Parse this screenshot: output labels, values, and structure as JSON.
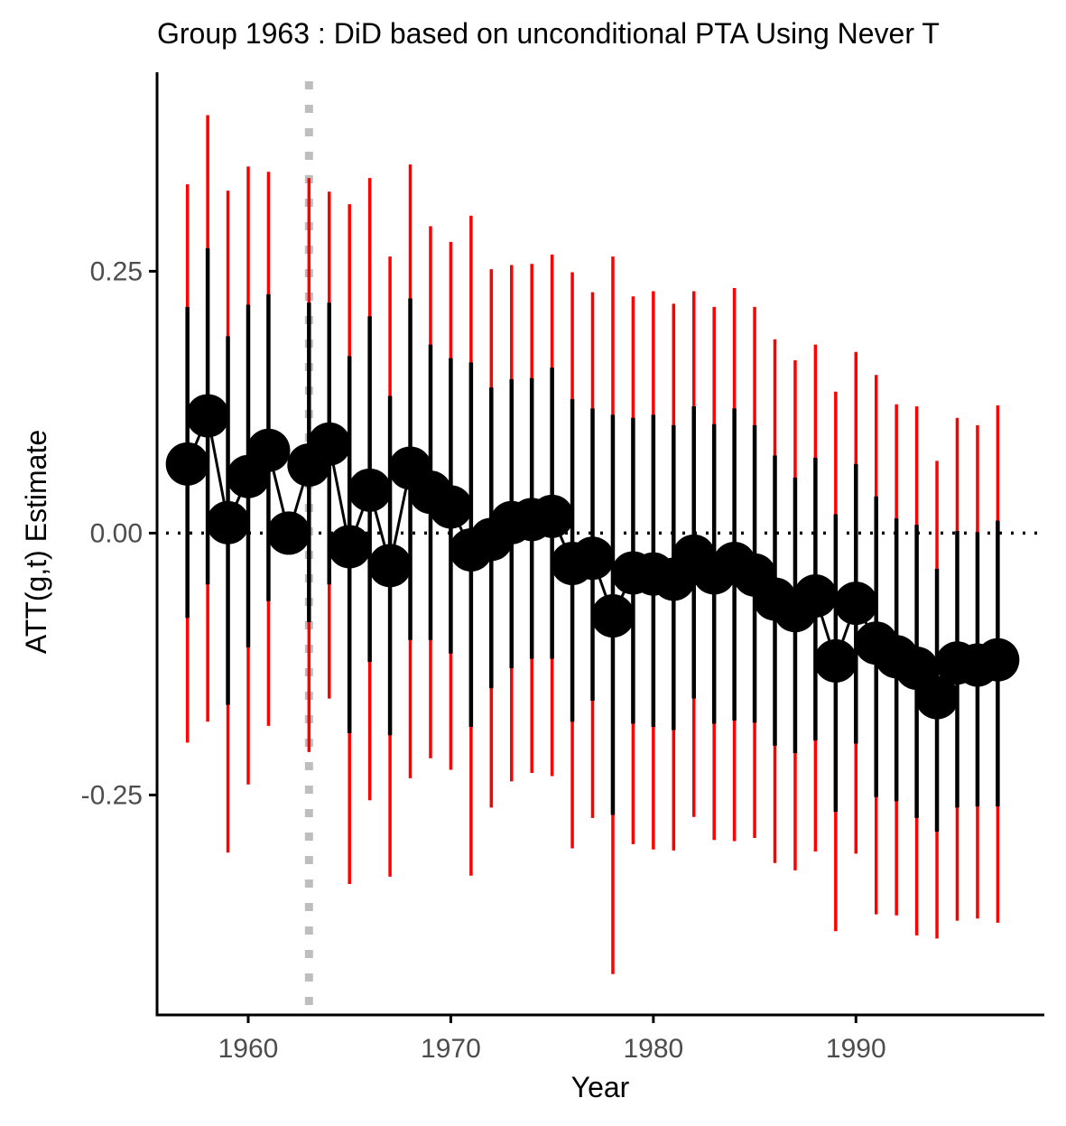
{
  "chart_data": {
    "type": "scatter",
    "title": "Group 1963 : DiD based on unconditional PTA Using Never T",
    "xlabel": "Year",
    "ylabel": "ATT(g,t) Estimate",
    "xlim": [
      1955.5,
      1999.3
    ],
    "ylim": [
      -0.46,
      0.44
    ],
    "x_ticks": [
      1960,
      1970,
      1980,
      1990
    ],
    "x_tick_labels": [
      "1960",
      "1970",
      "1980",
      "1990"
    ],
    "y_ticks": [
      0.25,
      0.0,
      -0.25
    ],
    "y_tick_labels": [
      "0.25",
      "0.00",
      "-0.25"
    ],
    "treatment_year": 1963,
    "reference_line_y": 0,
    "grid": false,
    "legend": "none",
    "colors": {
      "point": "#000000",
      "line": "#000000",
      "pointwise_ci": "#000000",
      "uniform_band": "#ff0000",
      "treatment_line": "#bebebe",
      "zero_line": "#000000",
      "axis": "#000000",
      "tick_label": "#4d4d4d"
    },
    "series": [
      {
        "x": [
          1957,
          1958,
          1959,
          1960,
          1961,
          1962,
          1963,
          1964,
          1965,
          1966,
          1967,
          1968,
          1969,
          1970,
          1971,
          1972,
          1973,
          1974,
          1975,
          1976,
          1977,
          1978,
          1979,
          1980,
          1981,
          1982,
          1983,
          1984,
          1985,
          1986,
          1987,
          1988,
          1989,
          1990,
          1991,
          1992,
          1993,
          1994,
          1995,
          1996,
          1997
        ],
        "estimate": [
          0.066,
          0.112,
          0.01,
          0.054,
          0.079,
          0.0,
          0.065,
          0.085,
          -0.013,
          0.041,
          -0.031,
          0.062,
          0.039,
          0.025,
          -0.016,
          -0.006,
          0.01,
          0.013,
          0.016,
          -0.029,
          -0.024,
          -0.079,
          -0.038,
          -0.039,
          -0.044,
          -0.022,
          -0.038,
          -0.029,
          -0.04,
          -0.063,
          -0.074,
          -0.06,
          -0.122,
          -0.067,
          -0.105,
          -0.118,
          -0.129,
          -0.157,
          -0.124,
          -0.126,
          -0.121
        ],
        "ci_lower": [
          -0.081,
          -0.049,
          -0.164,
          -0.109,
          -0.065,
          null,
          -0.085,
          -0.049,
          -0.191,
          -0.123,
          -0.193,
          -0.102,
          -0.102,
          -0.115,
          -0.185,
          -0.148,
          -0.129,
          -0.12,
          -0.12,
          -0.18,
          -0.16,
          -0.269,
          -0.182,
          -0.185,
          -0.188,
          -0.158,
          -0.182,
          -0.179,
          -0.181,
          -0.203,
          -0.21,
          -0.198,
          -0.266,
          -0.201,
          -0.252,
          -0.256,
          -0.272,
          -0.285,
          -0.262,
          -0.261,
          -0.261
        ],
        "ci_upper": [
          0.216,
          0.272,
          0.188,
          0.218,
          0.228,
          null,
          0.22,
          0.22,
          0.169,
          0.207,
          0.131,
          0.224,
          0.18,
          0.167,
          0.163,
          0.139,
          0.147,
          0.148,
          0.158,
          0.128,
          0.119,
          0.113,
          0.11,
          0.113,
          0.103,
          0.121,
          0.104,
          0.119,
          0.103,
          0.074,
          0.053,
          0.072,
          0.018,
          0.066,
          0.035,
          0.014,
          0.008,
          -0.034,
          0.002,
          0.001,
          0.012
        ],
        "band_lower": [
          -0.2,
          -0.18,
          -0.305,
          -0.24,
          -0.184,
          null,
          -0.209,
          -0.158,
          -0.335,
          -0.255,
          -0.328,
          -0.234,
          -0.215,
          -0.226,
          -0.327,
          -0.262,
          -0.237,
          -0.229,
          -0.232,
          -0.301,
          -0.272,
          -0.421,
          -0.297,
          -0.302,
          -0.303,
          -0.271,
          -0.293,
          -0.294,
          -0.291,
          -0.315,
          -0.322,
          -0.304,
          -0.38,
          -0.306,
          -0.364,
          -0.365,
          -0.384,
          -0.387,
          -0.37,
          -0.368,
          -0.372
        ],
        "band_upper": [
          0.333,
          0.399,
          0.327,
          0.35,
          0.345,
          null,
          0.339,
          0.326,
          0.314,
          0.339,
          0.264,
          0.352,
          0.293,
          0.278,
          0.303,
          0.252,
          0.256,
          0.257,
          0.266,
          0.249,
          0.23,
          0.264,
          0.226,
          0.231,
          0.219,
          0.231,
          0.216,
          0.234,
          0.216,
          0.185,
          0.165,
          0.18,
          0.135,
          0.173,
          0.151,
          0.123,
          0.121,
          0.069,
          0.11,
          0.103,
          0.122
        ]
      }
    ]
  }
}
